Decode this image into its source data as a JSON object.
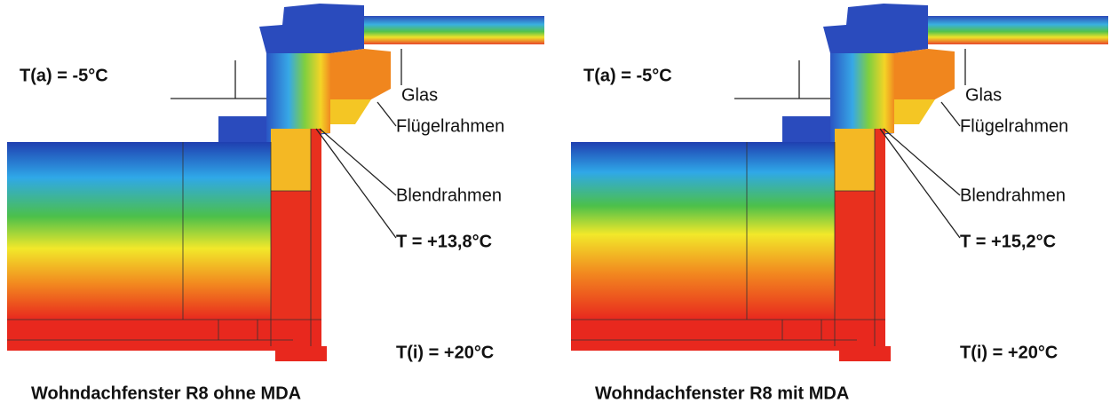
{
  "panels": [
    {
      "outside_temp": "T(a) = -5°C",
      "glass": "Glas",
      "sash": "Flügelrahmen",
      "frame": "Blendrahmen",
      "surface_temp": "T = +13,8°C",
      "inside_temp": "T(i) = +20°C",
      "caption": "Wohndachfenster R8 ohne MDA"
    },
    {
      "outside_temp": "T(a) = -5°C",
      "glass": "Glas",
      "sash": "Flügelrahmen",
      "frame": "Blendrahmen",
      "surface_temp": "T = +15,2°C",
      "inside_temp": "T(i) = +20°C",
      "caption": "Wohndachfenster R8 mit MDA"
    }
  ]
}
